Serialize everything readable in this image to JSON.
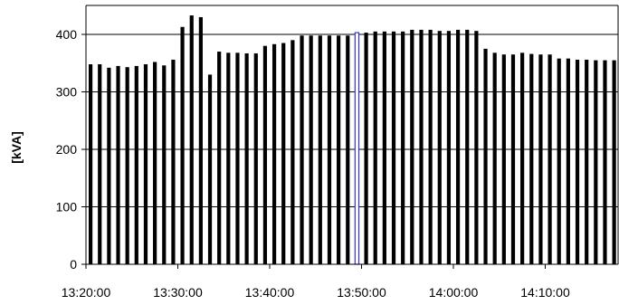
{
  "chart_data": {
    "type": "bar",
    "title": "",
    "xlabel": "",
    "ylabel": "[kVA]",
    "ylim": [
      0,
      450
    ],
    "yticks": [
      0,
      100,
      200,
      300,
      400
    ],
    "xtick_labels": [
      "13:20:00",
      "13:30:00",
      "13:40:00",
      "13:50:00",
      "14:00:00",
      "14:10:00"
    ],
    "grid": true,
    "highlight_color": "#3333cc",
    "bar_color": "#000000",
    "categories": [
      "13:20:00",
      "13:21:00",
      "13:22:00",
      "13:23:00",
      "13:24:00",
      "13:25:00",
      "13:26:00",
      "13:27:00",
      "13:28:00",
      "13:29:00",
      "13:30:00",
      "13:31:00",
      "13:32:00",
      "13:33:00",
      "13:34:00",
      "13:35:00",
      "13:36:00",
      "13:37:00",
      "13:38:00",
      "13:39:00",
      "13:40:00",
      "13:41:00",
      "13:42:00",
      "13:43:00",
      "13:44:00",
      "13:45:00",
      "13:46:00",
      "13:47:00",
      "13:48:00",
      "13:49:00",
      "13:50:00",
      "13:51:00",
      "13:52:00",
      "13:53:00",
      "13:54:00",
      "13:55:00",
      "13:56:00",
      "13:57:00",
      "13:58:00",
      "13:59:00",
      "14:00:00",
      "14:01:00",
      "14:02:00",
      "14:03:00",
      "14:04:00",
      "14:05:00",
      "14:06:00",
      "14:07:00",
      "14:08:00",
      "14:09:00",
      "14:10:00",
      "14:11:00",
      "14:12:00",
      "14:13:00",
      "14:14:00",
      "14:15:00",
      "14:16:00",
      "14:17:00"
    ],
    "values": [
      348,
      348,
      342,
      345,
      343,
      345,
      348,
      352,
      346,
      356,
      413,
      433,
      430,
      330,
      370,
      368,
      368,
      367,
      367,
      380,
      383,
      385,
      390,
      398,
      398,
      398,
      398,
      398,
      398,
      403,
      403,
      405,
      405,
      405,
      405,
      408,
      408,
      408,
      406,
      406,
      408,
      408,
      406,
      375,
      368,
      365,
      365,
      368,
      366,
      365,
      365,
      358,
      358,
      356,
      356,
      355,
      355,
      355
    ],
    "highlight_index": 29
  }
}
